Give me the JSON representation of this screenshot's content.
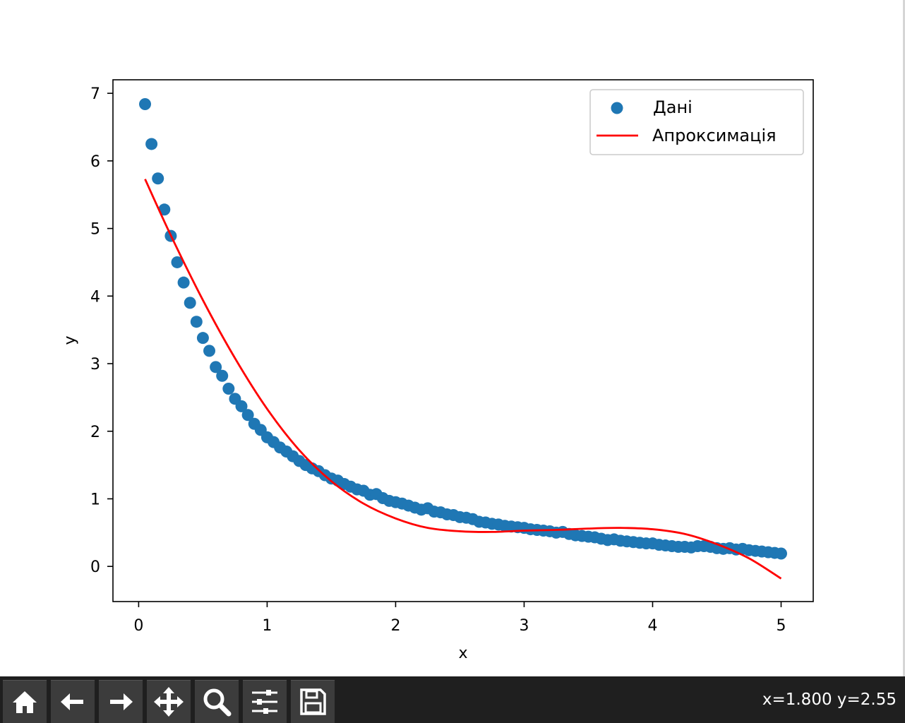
{
  "toolbar": {
    "buttons": [
      {
        "name": "home",
        "icon": "home-icon"
      },
      {
        "name": "back",
        "icon": "arrow-left-icon"
      },
      {
        "name": "forward",
        "icon": "arrow-right-icon"
      },
      {
        "name": "pan",
        "icon": "move-icon"
      },
      {
        "name": "zoom",
        "icon": "zoom-icon"
      },
      {
        "name": "configure",
        "icon": "sliders-icon"
      },
      {
        "name": "save",
        "icon": "save-icon"
      }
    ],
    "coordinates": "x=1.800 y=2.55"
  },
  "chart_data": {
    "type": "scatter",
    "xlabel": "x",
    "ylabel": "y",
    "xlim": [
      -0.2,
      5.25
    ],
    "ylim": [
      -0.52,
      7.2
    ],
    "xticks": [
      "0",
      "1",
      "2",
      "3",
      "4",
      "5"
    ],
    "yticks": [
      "0",
      "1",
      "2",
      "3",
      "4",
      "5",
      "6",
      "7"
    ],
    "grid": false,
    "legend": {
      "position": "top-right",
      "entries": [
        "Дані",
        "Апроксимація"
      ]
    },
    "series": [
      {
        "name": "Дані",
        "kind": "scatter",
        "color": "#1f77b4",
        "x": [
          0.05,
          0.1,
          0.15,
          0.2,
          0.25,
          0.3,
          0.35,
          0.4,
          0.45,
          0.5,
          0.55,
          0.6,
          0.65,
          0.7,
          0.75,
          0.8,
          0.85,
          0.9,
          0.95,
          1.0,
          1.05,
          1.1,
          1.15,
          1.2,
          1.25,
          1.3,
          1.35,
          1.4,
          1.45,
          1.5,
          1.55,
          1.6,
          1.65,
          1.7,
          1.75,
          1.8,
          1.85,
          1.9,
          1.95,
          2.0,
          2.05,
          2.1,
          2.15,
          2.2,
          2.25,
          2.3,
          2.35,
          2.4,
          2.45,
          2.5,
          2.55,
          2.6,
          2.65,
          2.7,
          2.75,
          2.8,
          2.85,
          2.9,
          2.95,
          3.0,
          3.05,
          3.1,
          3.15,
          3.2,
          3.25,
          3.3,
          3.35,
          3.4,
          3.45,
          3.5,
          3.55,
          3.6,
          3.65,
          3.7,
          3.75,
          3.8,
          3.85,
          3.9,
          3.95,
          4.0,
          4.05,
          4.1,
          4.15,
          4.2,
          4.25,
          4.3,
          4.35,
          4.4,
          4.45,
          4.5,
          4.55,
          4.6,
          4.65,
          4.7,
          4.75,
          4.8,
          4.85,
          4.9,
          4.95,
          5.0
        ],
        "y": [
          6.84,
          6.25,
          5.74,
          5.28,
          4.89,
          4.5,
          4.2,
          3.9,
          3.62,
          3.38,
          3.19,
          2.95,
          2.82,
          2.63,
          2.48,
          2.37,
          2.24,
          2.11,
          2.02,
          1.91,
          1.84,
          1.76,
          1.7,
          1.63,
          1.56,
          1.5,
          1.45,
          1.41,
          1.35,
          1.3,
          1.27,
          1.22,
          1.18,
          1.14,
          1.12,
          1.06,
          1.07,
          1.01,
          0.97,
          0.95,
          0.93,
          0.9,
          0.87,
          0.84,
          0.86,
          0.81,
          0.8,
          0.77,
          0.76,
          0.73,
          0.72,
          0.7,
          0.66,
          0.65,
          0.63,
          0.62,
          0.6,
          0.59,
          0.58,
          0.57,
          0.55,
          0.54,
          0.53,
          0.52,
          0.5,
          0.51,
          0.48,
          0.46,
          0.45,
          0.44,
          0.43,
          0.41,
          0.39,
          0.4,
          0.38,
          0.37,
          0.36,
          0.35,
          0.34,
          0.34,
          0.32,
          0.31,
          0.3,
          0.29,
          0.29,
          0.28,
          0.3,
          0.3,
          0.29,
          0.27,
          0.26,
          0.27,
          0.25,
          0.26,
          0.24,
          0.23,
          0.22,
          0.21,
          0.2,
          0.19
        ]
      },
      {
        "name": "Апроксимація",
        "kind": "line",
        "color": "#ff0000",
        "x": [
          0.05,
          0.25,
          0.5,
          0.75,
          1.0,
          1.25,
          1.5,
          1.75,
          2.0,
          2.25,
          2.5,
          2.75,
          3.0,
          3.25,
          3.5,
          3.75,
          4.0,
          4.25,
          4.5,
          4.75,
          5.0
        ],
        "y": [
          5.73,
          4.9,
          3.94,
          3.08,
          2.33,
          1.72,
          1.26,
          0.93,
          0.71,
          0.57,
          0.52,
          0.51,
          0.53,
          0.54,
          0.56,
          0.57,
          0.55,
          0.48,
          0.33,
          0.12,
          -0.18
        ]
      }
    ]
  }
}
